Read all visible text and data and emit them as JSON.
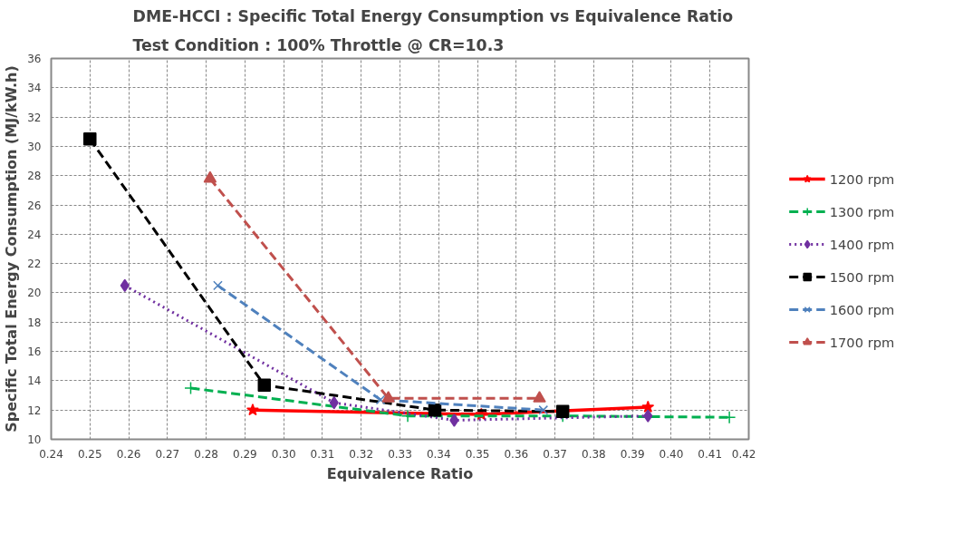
{
  "chart_data": {
    "type": "line",
    "title": "DME-HCCI : Specific Total Energy Consumption vs Equivalence Ratio",
    "subtitle": "Test Condition : 100% Throttle @ CR=10.3",
    "xlabel": "Equivalence Ratio",
    "ylabel": "Specific Total Energy Consumption (MJ/kW.h)",
    "xlim": [
      0.24,
      0.42
    ],
    "xticks": [
      {
        "value": 0.24,
        "label": "0.24"
      },
      {
        "value": 0.25,
        "label": "0.25"
      },
      {
        "value": 0.26,
        "label": "0.26"
      },
      {
        "value": 0.27,
        "label": "0.27"
      },
      {
        "value": 0.28,
        "label": "0.28"
      },
      {
        "value": 0.29,
        "label": "0.29"
      },
      {
        "value": 0.3,
        "label": "0.30"
      },
      {
        "value": 0.31,
        "label": "0.31"
      },
      {
        "value": 0.32,
        "label": "0.32"
      },
      {
        "value": 0.33,
        "label": "0.33"
      },
      {
        "value": 0.34,
        "label": "0.34"
      },
      {
        "value": 0.35,
        "label": "0.35"
      },
      {
        "value": 0.36,
        "label": "0.36"
      },
      {
        "value": 0.37,
        "label": "0.37"
      },
      {
        "value": 0.38,
        "label": "0.38"
      },
      {
        "value": 0.39,
        "label": "0.39"
      },
      {
        "value": 0.4,
        "label": "0.40"
      },
      {
        "value": 0.41,
        "label": "0.41"
      },
      {
        "value": 0.42,
        "label": "0.42"
      }
    ],
    "ylim": [
      10,
      36
    ],
    "yticks": [
      10,
      12,
      14,
      16,
      18,
      20,
      22,
      24,
      26,
      28,
      30,
      32,
      34,
      36
    ],
    "grid": true,
    "legend": "right",
    "series": [
      {
        "name": "1200 rpm",
        "color": "#ff0000",
        "marker": "star",
        "line_style": "solid",
        "x": [
          0.292,
          0.351,
          0.394
        ],
        "values": [
          12.0,
          11.7,
          12.2
        ]
      },
      {
        "name": "1300 rpm",
        "color": "#00b050",
        "marker": "cross",
        "line_style": "dashed",
        "x": [
          0.276,
          0.332,
          0.372,
          0.415
        ],
        "values": [
          13.5,
          11.6,
          11.6,
          11.5
        ]
      },
      {
        "name": "1400 rpm",
        "color": "#7030a0",
        "marker": "diamond",
        "line_style": "dotted",
        "x": [
          0.259,
          0.313,
          0.344,
          0.394
        ],
        "values": [
          20.5,
          12.5,
          11.3,
          11.6
        ]
      },
      {
        "name": "1500 rpm",
        "color": "#000000",
        "marker": "square",
        "line_style": "dashed",
        "x": [
          0.25,
          0.295,
          0.339,
          0.372
        ],
        "values": [
          30.5,
          13.7,
          12.0,
          11.9
        ]
      },
      {
        "name": "1600 rpm",
        "color": "#4f81bd",
        "marker": "x",
        "line_style": "dashed",
        "x": [
          0.283,
          0.325,
          0.367
        ],
        "values": [
          20.5,
          12.7,
          12.0
        ]
      },
      {
        "name": "1700 rpm",
        "color": "#c0504d",
        "marker": "triangle",
        "line_style": "dashed",
        "x": [
          0.281,
          0.327,
          0.366
        ],
        "values": [
          27.8,
          12.8,
          12.8
        ]
      }
    ]
  }
}
